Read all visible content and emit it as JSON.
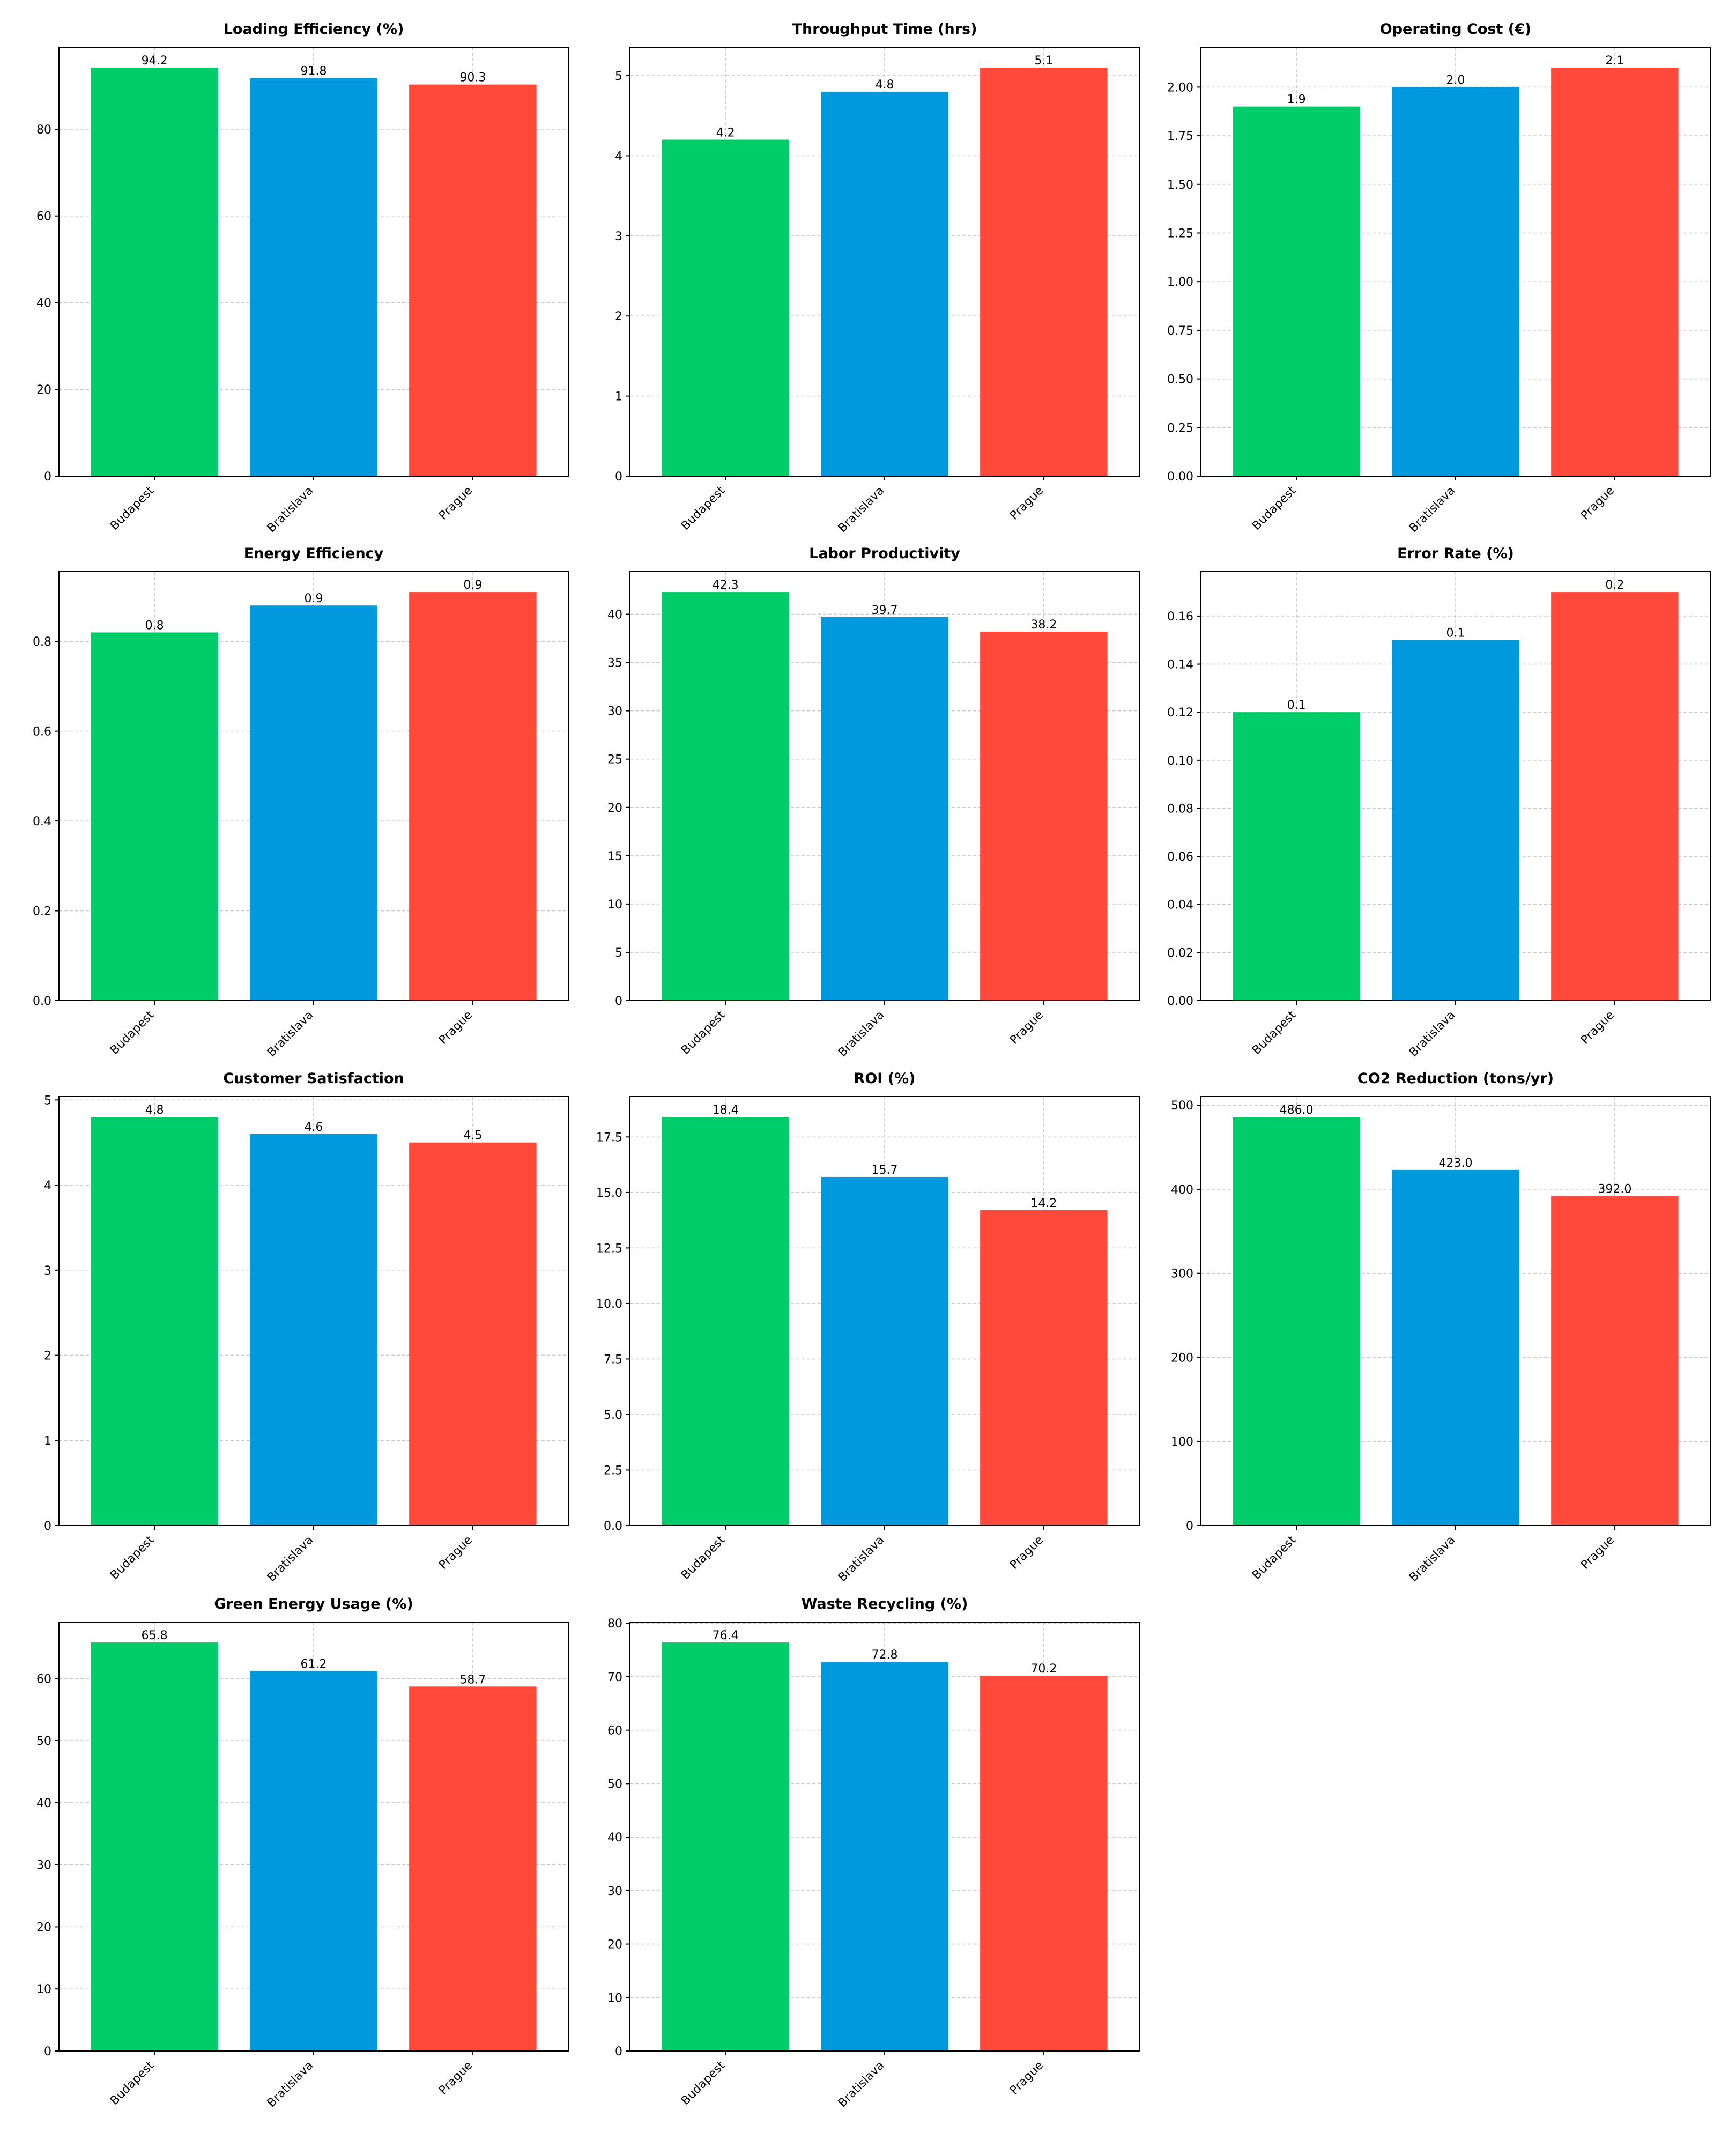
{
  "colors": {
    "Budapest": "#00cc6a",
    "Bratislava": "#0099dd",
    "Prague": "#ff4a3b",
    "grid": "#c8c8c8",
    "axis": "#000000"
  },
  "chart_data": [
    {
      "type": "bar",
      "title": "Loading Efficiency (%)",
      "categories": [
        "Budapest",
        "Bratislava",
        "Prague"
      ],
      "values": [
        94.2,
        91.8,
        90.3
      ],
      "value_labels": [
        "94.2",
        "91.8",
        "90.3"
      ],
      "ylim": [
        0,
        98.91
      ],
      "yticks": [
        0,
        20,
        40,
        60,
        80
      ],
      "ytick_labels": [
        "0",
        "20",
        "40",
        "60",
        "80"
      ],
      "grid": true
    },
    {
      "type": "bar",
      "title": "Throughput Time (hrs)",
      "categories": [
        "Budapest",
        "Bratislava",
        "Prague"
      ],
      "values": [
        4.2,
        4.8,
        5.1
      ],
      "value_labels": [
        "4.2",
        "4.8",
        "5.1"
      ],
      "ylim": [
        0,
        5.355
      ],
      "yticks": [
        0,
        1,
        2,
        3,
        4,
        5
      ],
      "ytick_labels": [
        "0",
        "1",
        "2",
        "3",
        "4",
        "5"
      ],
      "grid": true
    },
    {
      "type": "bar",
      "title": "Operating Cost (€)",
      "categories": [
        "Budapest",
        "Bratislava",
        "Prague"
      ],
      "values": [
        1.9,
        2.0,
        2.1
      ],
      "value_labels": [
        "1.9",
        "2.0",
        "2.1"
      ],
      "ylim": [
        0,
        2.205
      ],
      "yticks": [
        0,
        0.25,
        0.5,
        0.75,
        1.0,
        1.25,
        1.5,
        1.75,
        2.0
      ],
      "ytick_labels": [
        "0.00",
        "0.25",
        "0.50",
        "0.75",
        "1.00",
        "1.25",
        "1.50",
        "1.75",
        "2.00"
      ],
      "grid": true
    },
    {
      "type": "bar",
      "title": "Energy Efficiency",
      "categories": [
        "Budapest",
        "Bratislava",
        "Prague"
      ],
      "values": [
        0.82,
        0.88,
        0.91
      ],
      "value_labels": [
        "0.8",
        "0.9",
        "0.9"
      ],
      "ylim": [
        0,
        0.9555
      ],
      "yticks": [
        0,
        0.2,
        0.4,
        0.6,
        0.8
      ],
      "ytick_labels": [
        "0.0",
        "0.2",
        "0.4",
        "0.6",
        "0.8"
      ],
      "grid": true
    },
    {
      "type": "bar",
      "title": "Labor Productivity",
      "categories": [
        "Budapest",
        "Bratislava",
        "Prague"
      ],
      "values": [
        42.3,
        39.7,
        38.2
      ],
      "value_labels": [
        "42.3",
        "39.7",
        "38.2"
      ],
      "ylim": [
        0,
        44.415
      ],
      "yticks": [
        0,
        5,
        10,
        15,
        20,
        25,
        30,
        35,
        40
      ],
      "ytick_labels": [
        "0",
        "5",
        "10",
        "15",
        "20",
        "25",
        "30",
        "35",
        "40"
      ],
      "grid": true
    },
    {
      "type": "bar",
      "title": "Error Rate (%)",
      "categories": [
        "Budapest",
        "Bratislava",
        "Prague"
      ],
      "values": [
        0.12,
        0.15,
        0.17
      ],
      "value_labels": [
        "0.1",
        "0.1",
        "0.2"
      ],
      "ylim": [
        0,
        0.1785
      ],
      "yticks": [
        0,
        0.02,
        0.04,
        0.06,
        0.08,
        0.1,
        0.12,
        0.14,
        0.16
      ],
      "ytick_labels": [
        "0.00",
        "0.02",
        "0.04",
        "0.06",
        "0.08",
        "0.10",
        "0.12",
        "0.14",
        "0.16"
      ],
      "grid": true
    },
    {
      "type": "bar",
      "title": "Customer Satisfaction",
      "categories": [
        "Budapest",
        "Bratislava",
        "Prague"
      ],
      "values": [
        4.8,
        4.6,
        4.5
      ],
      "value_labels": [
        "4.8",
        "4.6",
        "4.5"
      ],
      "ylim": [
        0,
        5.04
      ],
      "yticks": [
        0,
        1,
        2,
        3,
        4,
        5
      ],
      "ytick_labels": [
        "0",
        "1",
        "2",
        "3",
        "4",
        "5"
      ],
      "grid": true
    },
    {
      "type": "bar",
      "title": "ROI (%)",
      "categories": [
        "Budapest",
        "Bratislava",
        "Prague"
      ],
      "values": [
        18.4,
        15.7,
        14.2
      ],
      "value_labels": [
        "18.4",
        "15.7",
        "14.2"
      ],
      "ylim": [
        0,
        19.32
      ],
      "yticks": [
        0,
        2.5,
        5.0,
        7.5,
        10.0,
        12.5,
        15.0,
        17.5
      ],
      "ytick_labels": [
        "0.0",
        "2.5",
        "5.0",
        "7.5",
        "10.0",
        "12.5",
        "15.0",
        "17.5"
      ],
      "grid": true
    },
    {
      "type": "bar",
      "title": "CO2 Reduction (tons/yr)",
      "categories": [
        "Budapest",
        "Bratislava",
        "Prague"
      ],
      "values": [
        486.0,
        423.0,
        392.0
      ],
      "value_labels": [
        "486.0",
        "423.0",
        "392.0"
      ],
      "ylim": [
        0,
        510.3
      ],
      "yticks": [
        0,
        100,
        200,
        300,
        400,
        500
      ],
      "ytick_labels": [
        "0",
        "100",
        "200",
        "300",
        "400",
        "500"
      ],
      "grid": true
    },
    {
      "type": "bar",
      "title": "Green Energy Usage (%)",
      "categories": [
        "Budapest",
        "Bratislava",
        "Prague"
      ],
      "values": [
        65.8,
        61.2,
        58.7
      ],
      "value_labels": [
        "65.8",
        "61.2",
        "58.7"
      ],
      "ylim": [
        0,
        69.09
      ],
      "yticks": [
        0,
        10,
        20,
        30,
        40,
        50,
        60
      ],
      "ytick_labels": [
        "0",
        "10",
        "20",
        "30",
        "40",
        "50",
        "60"
      ],
      "grid": true
    },
    {
      "type": "bar",
      "title": "Waste Recycling (%)",
      "categories": [
        "Budapest",
        "Bratislava",
        "Prague"
      ],
      "values": [
        76.4,
        72.8,
        70.2
      ],
      "value_labels": [
        "76.4",
        "72.8",
        "70.2"
      ],
      "ylim": [
        0,
        80.22
      ],
      "yticks": [
        0,
        10,
        20,
        30,
        40,
        50,
        60,
        70,
        80
      ],
      "ytick_labels": [
        "0",
        "10",
        "20",
        "30",
        "40",
        "50",
        "60",
        "70",
        "80"
      ],
      "grid": true
    }
  ]
}
